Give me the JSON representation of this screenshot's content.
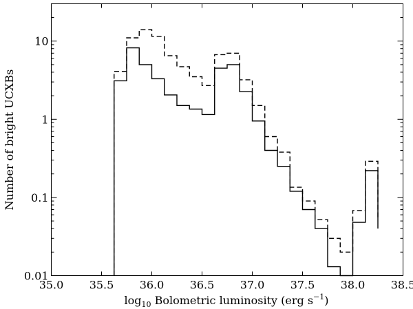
{
  "chart_data": {
    "type": "histogram",
    "xlabel": "log10 Bolometric luminosity (erg s−1)",
    "xlabel_parts": {
      "prefix": "log",
      "subscript": "10",
      "main": " Bolometric luminosity (erg s",
      "superscript": "−1",
      "suffix": ")"
    },
    "ylabel": "Number of bright UCXBs",
    "xlim": [
      35.0,
      38.5
    ],
    "ylim": [
      0.01,
      30
    ],
    "yscale": "log",
    "grid": false,
    "xticks": [
      35.0,
      35.5,
      36.0,
      36.5,
      37.0,
      37.5,
      38.0,
      38.5
    ],
    "xtick_labels": [
      "35.0",
      "35.5",
      "36.0",
      "36.5",
      "37.0",
      "37.5",
      "38.0",
      "38.5"
    ],
    "yticks": [
      0.01,
      0.1,
      1,
      10
    ],
    "ytick_labels": [
      "0.01",
      "0.1",
      "1",
      "10"
    ],
    "bin_edges": [
      35.625,
      35.75,
      35.875,
      36.0,
      36.125,
      36.25,
      36.375,
      36.5,
      36.625,
      36.75,
      36.875,
      37.0,
      37.125,
      37.25,
      37.375,
      37.5,
      37.625,
      37.75,
      37.875,
      38.0,
      38.125,
      38.25
    ],
    "series": [
      {
        "style": "solid",
        "color": "#000000",
        "values": [
          3.1,
          8.2,
          5.0,
          3.3,
          2.05,
          1.5,
          1.35,
          1.15,
          4.5,
          5.0,
          2.25,
          0.95,
          0.4,
          0.25,
          0.12,
          0.07,
          0.04,
          0.013,
          0.0,
          0.048,
          0.22,
          0.04
        ]
      },
      {
        "style": "dashed",
        "color": "#000000",
        "values": [
          4.1,
          11.0,
          14.0,
          11.5,
          6.5,
          4.7,
          3.5,
          2.7,
          6.7,
          7.0,
          3.2,
          1.5,
          0.6,
          0.38,
          0.135,
          0.09,
          0.052,
          0.03,
          0.02,
          0.068,
          0.29,
          0.053
        ]
      }
    ]
  }
}
